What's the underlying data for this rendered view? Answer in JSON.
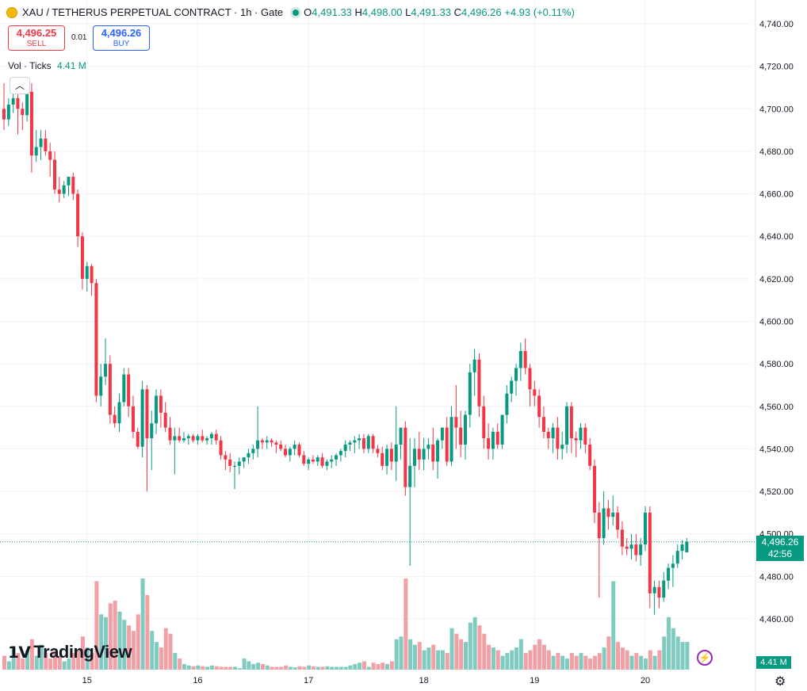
{
  "header": {
    "symbol": "XAU / TETHERUS PERPETUAL CONTRACT · 1h · Gate",
    "o_label": "O",
    "o_value": "4,491.33",
    "h_label": "H",
    "h_value": "4,498.00",
    "l_label": "L",
    "l_value": "4,491.33",
    "c_label": "C",
    "c_value": "4,496.26",
    "change": "+4.93 (+0.11%)"
  },
  "trade": {
    "sell_price": "4,496.25",
    "sell_label": "SELL",
    "spread": "0.01",
    "buy_price": "4,496.26",
    "buy_label": "BUY"
  },
  "volume_legend": {
    "label": "Vol · Ticks",
    "value": "4.41 M"
  },
  "last_price": {
    "price": "4,496.26",
    "countdown": "42:56",
    "volume": "4.41 M"
  },
  "branding": {
    "name": "TradingView"
  },
  "icons": {
    "collapse": "chevron-up-icon",
    "bolt": "lightning-icon",
    "settings": "gear-icon"
  },
  "colors": {
    "up": "#089981",
    "down": "#f23645",
    "up_vol": "#7fcbc0",
    "down_vol": "#f2a0a6"
  },
  "chart_data": {
    "type": "candlestick",
    "interval": "1h",
    "y_axis": {
      "range": [
        4450,
        4745
      ],
      "ticks": [
        4740,
        4720,
        4700,
        4680,
        4660,
        4640,
        4620,
        4600,
        4580,
        4560,
        4540,
        4520,
        4500,
        4480,
        4460
      ]
    },
    "x_axis": {
      "ticks": [
        "15",
        "16",
        "17",
        "18",
        "19",
        "20"
      ]
    },
    "grid": true,
    "last_price_line": 4496.26,
    "series": [
      {
        "name": "XAU / TETHERUS PERPETUAL CONTRACT",
        "candles": [
          [
            4700,
            4712,
            4690,
            4695
          ],
          [
            4695,
            4705,
            4692,
            4702
          ],
          [
            4702,
            4710,
            4698,
            4705
          ],
          [
            4705,
            4708,
            4688,
            4700
          ],
          [
            4700,
            4703,
            4690,
            4697
          ],
          [
            4697,
            4712,
            4694,
            4708
          ],
          [
            4708,
            4712,
            4670,
            4678
          ],
          [
            4678,
            4690,
            4675,
            4682
          ],
          [
            4682,
            4690,
            4676,
            4686
          ],
          [
            4686,
            4690,
            4678,
            4680
          ],
          [
            4680,
            4684,
            4668,
            4676
          ],
          [
            4676,
            4680,
            4660,
            4662
          ],
          [
            4662,
            4668,
            4656,
            4660
          ],
          [
            4660,
            4666,
            4658,
            4664
          ],
          [
            4664,
            4668,
            4659,
            4668
          ],
          [
            4668,
            4670,
            4657,
            4660
          ],
          [
            4660,
            4662,
            4635,
            4640
          ],
          [
            4640,
            4642,
            4615,
            4620
          ],
          [
            4620,
            4628,
            4614,
            4626
          ],
          [
            4626,
            4627,
            4612,
            4618
          ],
          [
            4618,
            4620,
            4562,
            4565
          ],
          [
            4565,
            4580,
            4560,
            4574
          ],
          [
            4574,
            4592,
            4570,
            4580
          ],
          [
            4580,
            4584,
            4552,
            4556
          ],
          [
            4556,
            4560,
            4550,
            4552
          ],
          [
            4552,
            4566,
            4548,
            4562
          ],
          [
            4562,
            4578,
            4560,
            4575
          ],
          [
            4575,
            4578,
            4555,
            4560
          ],
          [
            4560,
            4565,
            4545,
            4548
          ],
          [
            4548,
            4550,
            4540,
            4541
          ],
          [
            4541,
            4572,
            4536,
            4568
          ],
          [
            4568,
            4570,
            4520,
            4545
          ],
          [
            4545,
            4558,
            4530,
            4552
          ],
          [
            4552,
            4568,
            4547,
            4565
          ],
          [
            4565,
            4568,
            4550,
            4557
          ],
          [
            4557,
            4562,
            4548,
            4550
          ],
          [
            4550,
            4555,
            4542,
            4544
          ],
          [
            4544,
            4550,
            4528,
            4546
          ],
          [
            4546,
            4550,
            4543,
            4544
          ],
          [
            4544,
            4548,
            4543,
            4545
          ],
          [
            4545,
            4547,
            4542,
            4546
          ],
          [
            4546,
            4547,
            4543,
            4544
          ],
          [
            4544,
            4547,
            4542,
            4546
          ],
          [
            4546,
            4549,
            4543,
            4544
          ],
          [
            4544,
            4546,
            4542,
            4545
          ],
          [
            4545,
            4548,
            4542,
            4547
          ],
          [
            4547,
            4549,
            4542,
            4544
          ],
          [
            4544,
            4546,
            4535,
            4537
          ],
          [
            4537,
            4539,
            4530,
            4535
          ],
          [
            4535,
            4538,
            4529,
            4532
          ],
          [
            4532,
            4534,
            4521,
            4532
          ],
          [
            4532,
            4536,
            4528,
            4534
          ],
          [
            4534,
            4536,
            4531,
            4536
          ],
          [
            4536,
            4540,
            4533,
            4538
          ],
          [
            4538,
            4542,
            4535,
            4540
          ],
          [
            4540,
            4560,
            4536,
            4544
          ],
          [
            4544,
            4545,
            4540,
            4543
          ],
          [
            4543,
            4546,
            4540,
            4544
          ],
          [
            4544,
            4545,
            4541,
            4543
          ],
          [
            4543,
            4544,
            4538,
            4542
          ],
          [
            4542,
            4544,
            4539,
            4540
          ],
          [
            4540,
            4542,
            4536,
            4537
          ],
          [
            4537,
            4541,
            4534,
            4540
          ],
          [
            4540,
            4544,
            4537,
            4542
          ],
          [
            4542,
            4543,
            4536,
            4537
          ],
          [
            4537,
            4539,
            4532,
            4533
          ],
          [
            4533,
            4536,
            4530,
            4535
          ],
          [
            4535,
            4537,
            4533,
            4534
          ],
          [
            4534,
            4537,
            4532,
            4536
          ],
          [
            4536,
            4538,
            4531,
            4532
          ],
          [
            4532,
            4535,
            4530,
            4534
          ],
          [
            4534,
            4537,
            4531,
            4535
          ],
          [
            4535,
            4538,
            4532,
            4537
          ],
          [
            4537,
            4540,
            4534,
            4539
          ],
          [
            4539,
            4544,
            4536,
            4542
          ],
          [
            4542,
            4544,
            4539,
            4543
          ],
          [
            4543,
            4546,
            4538,
            4544
          ],
          [
            4544,
            4547,
            4540,
            4545
          ],
          [
            4545,
            4547,
            4538,
            4540
          ],
          [
            4540,
            4547,
            4538,
            4546
          ],
          [
            4546,
            4547,
            4538,
            4540
          ],
          [
            4540,
            4542,
            4536,
            4538
          ],
          [
            4538,
            4541,
            4530,
            4532
          ],
          [
            4532,
            4542,
            4528,
            4540
          ],
          [
            4540,
            4543,
            4530,
            4534
          ],
          [
            4534,
            4560,
            4525,
            4542
          ],
          [
            4542,
            4550,
            4535,
            4550
          ],
          [
            4550,
            4553,
            4518,
            4522
          ],
          [
            4522,
            4545,
            4485,
            4532
          ],
          [
            4532,
            4545,
            4522,
            4540
          ],
          [
            4540,
            4548,
            4530,
            4535
          ],
          [
            4535,
            4545,
            4530,
            4540
          ],
          [
            4540,
            4545,
            4535,
            4542
          ],
          [
            4542,
            4550,
            4530,
            4534
          ],
          [
            4534,
            4545,
            4526,
            4544
          ],
          [
            4544,
            4550,
            4540,
            4550
          ],
          [
            4550,
            4555,
            4532,
            4534
          ],
          [
            4534,
            4560,
            4532,
            4555
          ],
          [
            4555,
            4570,
            4540,
            4550
          ],
          [
            4550,
            4558,
            4536,
            4542
          ],
          [
            4542,
            4558,
            4535,
            4556
          ],
          [
            4556,
            4580,
            4550,
            4576
          ],
          [
            4576,
            4587,
            4565,
            4582
          ],
          [
            4582,
            4585,
            4555,
            4560
          ],
          [
            4560,
            4565,
            4540,
            4545
          ],
          [
            4545,
            4552,
            4535,
            4540
          ],
          [
            4540,
            4550,
            4535,
            4548
          ],
          [
            4548,
            4552,
            4540,
            4542
          ],
          [
            4542,
            4556,
            4540,
            4556
          ],
          [
            4556,
            4570,
            4552,
            4566
          ],
          [
            4566,
            4574,
            4562,
            4572
          ],
          [
            4572,
            4580,
            4565,
            4578
          ],
          [
            4578,
            4590,
            4572,
            4586
          ],
          [
            4586,
            4592,
            4575,
            4578
          ],
          [
            4578,
            4580,
            4560,
            4568
          ],
          [
            4568,
            4572,
            4560,
            4565
          ],
          [
            4565,
            4568,
            4550,
            4555
          ],
          [
            4555,
            4560,
            4545,
            4548
          ],
          [
            4548,
            4550,
            4540,
            4545
          ],
          [
            4545,
            4552,
            4538,
            4550
          ],
          [
            4550,
            4555,
            4535,
            4540
          ],
          [
            4540,
            4548,
            4535,
            4542
          ],
          [
            4542,
            4562,
            4538,
            4560
          ],
          [
            4560,
            4562,
            4538,
            4545
          ],
          [
            4545,
            4548,
            4536,
            4544
          ],
          [
            4544,
            4552,
            4540,
            4550
          ],
          [
            4550,
            4552,
            4538,
            4542
          ],
          [
            4542,
            4545,
            4530,
            4532
          ],
          [
            4532,
            4535,
            4505,
            4510
          ],
          [
            4510,
            4515,
            4470,
            4498
          ],
          [
            4498,
            4520,
            4495,
            4512
          ],
          [
            4512,
            4516,
            4502,
            4508
          ],
          [
            4508,
            4518,
            4504,
            4510
          ],
          [
            4510,
            4513,
            4498,
            4502
          ],
          [
            4502,
            4506,
            4490,
            4494
          ],
          [
            4494,
            4498,
            4490,
            4493
          ],
          [
            4493,
            4500,
            4488,
            4495
          ],
          [
            4495,
            4500,
            4487,
            4490
          ],
          [
            4490,
            4498,
            4485,
            4495
          ],
          [
            4495,
            4513,
            4492,
            4510
          ],
          [
            4510,
            4513,
            4465,
            4472
          ],
          [
            4472,
            4478,
            4462,
            4475
          ],
          [
            4475,
            4478,
            4465,
            4470
          ],
          [
            4470,
            4482,
            4468,
            4478
          ],
          [
            4478,
            4486,
            4474,
            4484
          ],
          [
            4484,
            4490,
            4475,
            4486
          ],
          [
            4486,
            4495,
            4484,
            4492
          ],
          [
            4492,
            4497,
            4488,
            4495
          ],
          [
            4491.33,
            4498,
            4491.33,
            4496.26
          ]
        ],
        "volumes": [
          0.5,
          0.3,
          0.8,
          0.6,
          0.4,
          0.7,
          1.1,
          0.5,
          0.9,
          0.6,
          0.4,
          0.7,
          0.5,
          0.3,
          0.4,
          0.6,
          0.7,
          1.2,
          0.8,
          0.6,
          3.2,
          2.0,
          1.9,
          2.4,
          2.5,
          2.1,
          1.8,
          1.6,
          1.4,
          2.0,
          3.3,
          2.7,
          1.4,
          1.0,
          0.8,
          1.5,
          1.3,
          0.6,
          0.4,
          0.2,
          0.15,
          0.12,
          0.15,
          0.12,
          0.1,
          0.15,
          0.12,
          0.1,
          0.1,
          0.1,
          0.1,
          0.05,
          0.4,
          0.3,
          0.2,
          0.25,
          0.2,
          0.15,
          0.1,
          0.1,
          0.1,
          0.15,
          0.1,
          0.08,
          0.12,
          0.1,
          0.15,
          0.12,
          0.1,
          0.1,
          0.12,
          0.1,
          0.1,
          0.1,
          0.1,
          0.15,
          0.2,
          0.25,
          0.3,
          0.1,
          0.25,
          0.2,
          0.25,
          0.2,
          0.3,
          1.1,
          1.2,
          3.3,
          1.1,
          0.9,
          1.0,
          0.7,
          0.8,
          0.9,
          0.7,
          0.7,
          0.6,
          1.5,
          1.3,
          1.1,
          1.0,
          1.7,
          1.9,
          1.6,
          1.3,
          0.9,
          0.8,
          0.7,
          0.5,
          0.6,
          0.7,
          0.8,
          1.1,
          0.6,
          0.7,
          0.9,
          1.1,
          0.9,
          0.7,
          0.5,
          0.6,
          0.5,
          0.4,
          0.6,
          0.5,
          0.6,
          0.5,
          0.4,
          0.5,
          0.6,
          0.8,
          1.2,
          3.2,
          1.0,
          0.8,
          0.7,
          0.5,
          0.6,
          0.5,
          0.4,
          0.7,
          0.5,
          0.7,
          1.2,
          1.9,
          1.5,
          1.2,
          1.0,
          1.0,
          0.9,
          0.9,
          0.8,
          0.8
        ]
      }
    ]
  }
}
